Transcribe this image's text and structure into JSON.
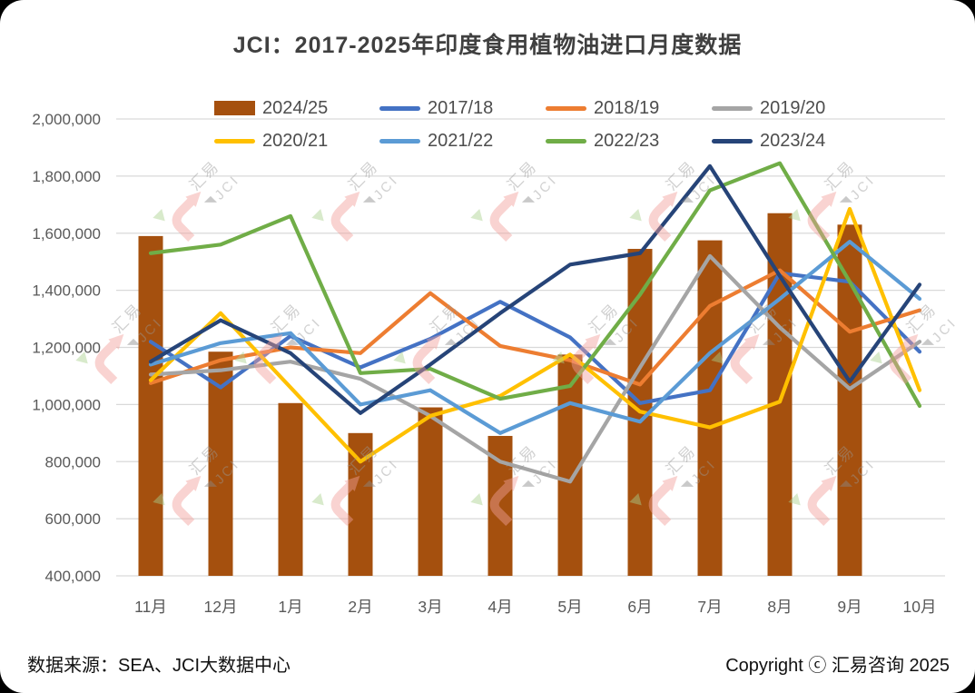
{
  "title": {
    "text": "JCI：2017-2025年印度食用植物油进口月度数据"
  },
  "footer": {
    "source": "数据来源：SEA、JCI大数据中心",
    "copyright": "Copyright ⓒ 汇易咨询 2025"
  },
  "watermark": {
    "line1": "汇易",
    "line2": "JCI",
    "hook_color": "#F2A09B",
    "triangle_color": "#A9D18E",
    "text_color": "#999999"
  },
  "colors": {
    "grid": "#D9D9D9",
    "axis_text": "#595959",
    "title_text": "#404040"
  },
  "chart_data": {
    "type": "bar",
    "subtype": "combo-bar-line",
    "title": "JCI：2017-2025年印度食用植物油进口月度数据",
    "xlabel": "",
    "ylabel": "",
    "ylim": [
      400000,
      2000000
    ],
    "ytick_step": 200000,
    "ytick_labels": [
      "400,000",
      "600,000",
      "800,000",
      "1,000,000",
      "1,200,000",
      "1,400,000",
      "1,600,000",
      "1,800,000",
      "2,000,000"
    ],
    "grid": true,
    "legend_position": "top",
    "categories": [
      "11月",
      "12月",
      "1月",
      "2月",
      "3月",
      "4月",
      "5月",
      "6月",
      "7月",
      "8月",
      "9月",
      "10月"
    ],
    "series": [
      {
        "name": "2024/25",
        "type": "bar",
        "color": "#A5500E",
        "values": [
          1590000,
          1185000,
          1005000,
          900000,
          990000,
          890000,
          1175000,
          1545000,
          1575000,
          1670000,
          1630000,
          null
        ]
      },
      {
        "name": "2017/18",
        "type": "line",
        "color": "#4472C4",
        "values": [
          1220000,
          1060000,
          1240000,
          1130000,
          1230000,
          1360000,
          1235000,
          1005000,
          1050000,
          1460000,
          1430000,
          1185000
        ]
      },
      {
        "name": "2018/19",
        "type": "line",
        "color": "#ED7D31",
        "values": [
          1075000,
          1155000,
          1200000,
          1180000,
          1390000,
          1205000,
          1155000,
          1070000,
          1345000,
          1470000,
          1255000,
          1330000
        ]
      },
      {
        "name": "2019/20",
        "type": "line",
        "color": "#A5A5A5",
        "values": [
          1105000,
          1120000,
          1150000,
          1090000,
          960000,
          800000,
          730000,
          1130000,
          1520000,
          1270000,
          1055000,
          1220000
        ]
      },
      {
        "name": "2020/21",
        "type": "line",
        "color": "#FFC000",
        "values": [
          1085000,
          1320000,
          1060000,
          800000,
          960000,
          1030000,
          1175000,
          975000,
          920000,
          1010000,
          1685000,
          1050000
        ]
      },
      {
        "name": "2021/22",
        "type": "line",
        "color": "#5B9BD5",
        "values": [
          1140000,
          1215000,
          1250000,
          1000000,
          1050000,
          900000,
          1005000,
          940000,
          1180000,
          1370000,
          1570000,
          1370000
        ]
      },
      {
        "name": "2022/23",
        "type": "line",
        "color": "#70AD47",
        "values": [
          1530000,
          1560000,
          1660000,
          1110000,
          1125000,
          1020000,
          1065000,
          1385000,
          1750000,
          1845000,
          1430000,
          995000
        ]
      },
      {
        "name": "2023/24",
        "type": "line",
        "color": "#264478",
        "values": [
          1150000,
          1295000,
          1180000,
          970000,
          1140000,
          1320000,
          1490000,
          1530000,
          1835000,
          1450000,
          1080000,
          1420000
        ]
      }
    ],
    "legend_rows": [
      [
        0,
        1,
        2,
        3
      ],
      [
        4,
        5,
        6,
        7
      ]
    ]
  }
}
